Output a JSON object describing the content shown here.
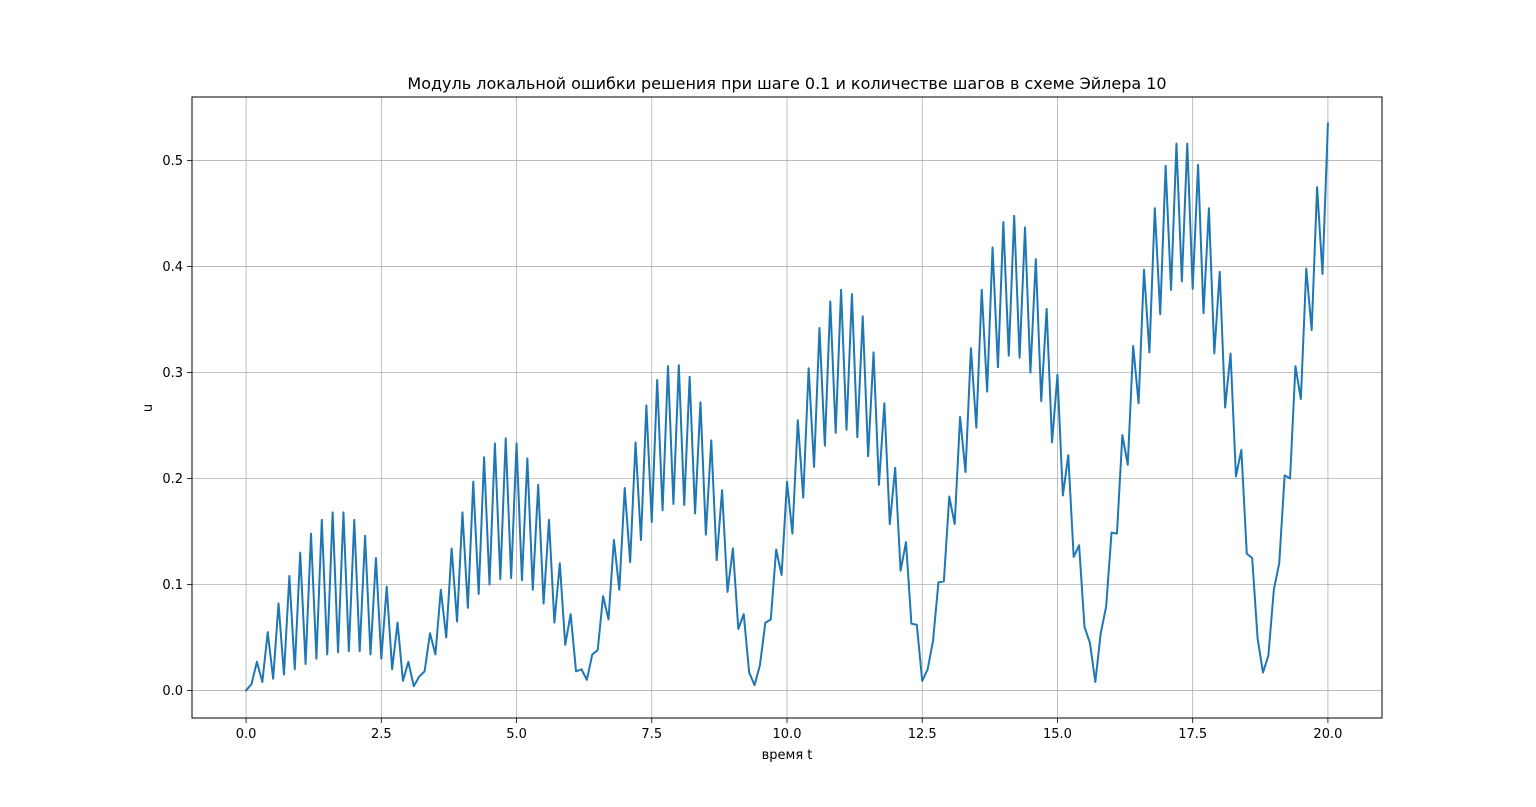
{
  "chart_data": {
    "type": "line",
    "title": "Модуль локальной ошибки решения при шаге 0.1 и количестве шагов в схеме Эйлера 10",
    "xlabel": "время t",
    "ylabel": "u",
    "xlim": [
      -1.0,
      21.0
    ],
    "ylim": [
      -0.026,
      0.56
    ],
    "grid": true,
    "x_ticks": [
      0.0,
      2.5,
      5.0,
      7.5,
      10.0,
      12.5,
      15.0,
      17.5,
      20.0
    ],
    "x_tick_labels": [
      "0.0",
      "2.5",
      "5.0",
      "7.5",
      "10.0",
      "12.5",
      "15.0",
      "17.5",
      "20.0"
    ],
    "y_ticks": [
      0.0,
      0.1,
      0.2,
      0.3,
      0.4,
      0.5
    ],
    "y_tick_labels": [
      "0.0",
      "0.1",
      "0.2",
      "0.3",
      "0.4",
      "0.5"
    ],
    "line_color": "#1f77b4",
    "series": [
      {
        "points": [
          [
            0.0,
            0.0
          ],
          [
            0.1,
            0.006
          ],
          [
            0.2,
            0.027
          ],
          [
            0.3,
            0.008
          ],
          [
            0.4,
            0.055
          ],
          [
            0.5,
            0.011
          ],
          [
            0.6,
            0.082
          ],
          [
            0.7,
            0.015
          ],
          [
            0.8,
            0.108
          ],
          [
            0.9,
            0.02
          ],
          [
            1.0,
            0.13
          ],
          [
            1.1,
            0.025
          ],
          [
            1.2,
            0.148
          ],
          [
            1.3,
            0.03
          ],
          [
            1.4,
            0.161
          ],
          [
            1.5,
            0.034
          ],
          [
            1.6,
            0.168
          ],
          [
            1.7,
            0.036
          ],
          [
            1.8,
            0.168
          ],
          [
            1.9,
            0.037
          ],
          [
            2.0,
            0.161
          ],
          [
            2.1,
            0.037
          ],
          [
            2.2,
            0.146
          ],
          [
            2.3,
            0.034
          ],
          [
            2.4,
            0.125
          ],
          [
            2.5,
            0.03
          ],
          [
            2.6,
            0.098
          ],
          [
            2.7,
            0.02
          ],
          [
            2.8,
            0.064
          ],
          [
            2.9,
            0.009
          ],
          [
            3.0,
            0.027
          ],
          [
            3.1,
            0.004
          ],
          [
            3.2,
            0.013
          ],
          [
            3.3,
            0.018
          ],
          [
            3.4,
            0.054
          ],
          [
            3.5,
            0.034
          ],
          [
            3.6,
            0.095
          ],
          [
            3.7,
            0.05
          ],
          [
            3.8,
            0.134
          ],
          [
            3.9,
            0.065
          ],
          [
            4.0,
            0.168
          ],
          [
            4.1,
            0.078
          ],
          [
            4.2,
            0.197
          ],
          [
            4.3,
            0.091
          ],
          [
            4.4,
            0.22
          ],
          [
            4.5,
            0.1
          ],
          [
            4.6,
            0.233
          ],
          [
            4.7,
            0.105
          ],
          [
            4.8,
            0.238
          ],
          [
            4.9,
            0.106
          ],
          [
            5.0,
            0.233
          ],
          [
            5.1,
            0.104
          ],
          [
            5.2,
            0.219
          ],
          [
            5.3,
            0.095
          ],
          [
            5.4,
            0.194
          ],
          [
            5.5,
            0.082
          ],
          [
            5.6,
            0.161
          ],
          [
            5.7,
            0.064
          ],
          [
            5.8,
            0.12
          ],
          [
            5.9,
            0.043
          ],
          [
            6.0,
            0.072
          ],
          [
            6.1,
            0.018
          ],
          [
            6.2,
            0.02
          ],
          [
            6.3,
            0.01
          ],
          [
            6.4,
            0.034
          ],
          [
            6.5,
            0.038
          ],
          [
            6.6,
            0.089
          ],
          [
            6.7,
            0.067
          ],
          [
            6.8,
            0.142
          ],
          [
            6.9,
            0.095
          ],
          [
            7.0,
            0.191
          ],
          [
            7.1,
            0.121
          ],
          [
            7.2,
            0.234
          ],
          [
            7.3,
            0.142
          ],
          [
            7.4,
            0.269
          ],
          [
            7.5,
            0.159
          ],
          [
            7.6,
            0.293
          ],
          [
            7.7,
            0.17
          ],
          [
            7.8,
            0.306
          ],
          [
            7.9,
            0.176
          ],
          [
            8.0,
            0.307
          ],
          [
            8.1,
            0.175
          ],
          [
            8.2,
            0.296
          ],
          [
            8.3,
            0.167
          ],
          [
            8.4,
            0.272
          ],
          [
            8.5,
            0.147
          ],
          [
            8.6,
            0.236
          ],
          [
            8.7,
            0.123
          ],
          [
            8.8,
            0.189
          ],
          [
            8.9,
            0.093
          ],
          [
            9.0,
            0.134
          ],
          [
            9.1,
            0.058
          ],
          [
            9.2,
            0.072
          ],
          [
            9.3,
            0.017
          ],
          [
            9.4,
            0.005
          ],
          [
            9.5,
            0.024
          ],
          [
            9.6,
            0.064
          ],
          [
            9.7,
            0.067
          ],
          [
            9.8,
            0.133
          ],
          [
            9.9,
            0.109
          ],
          [
            10.0,
            0.197
          ],
          [
            10.1,
            0.148
          ],
          [
            10.2,
            0.255
          ],
          [
            10.3,
            0.182
          ],
          [
            10.4,
            0.304
          ],
          [
            10.5,
            0.211
          ],
          [
            10.6,
            0.342
          ],
          [
            10.7,
            0.231
          ],
          [
            10.8,
            0.367
          ],
          [
            10.9,
            0.243
          ],
          [
            11.0,
            0.378
          ],
          [
            11.1,
            0.246
          ],
          [
            11.2,
            0.374
          ],
          [
            11.3,
            0.239
          ],
          [
            11.4,
            0.353
          ],
          [
            11.5,
            0.221
          ],
          [
            11.6,
            0.319
          ],
          [
            11.7,
            0.194
          ],
          [
            11.8,
            0.271
          ],
          [
            11.9,
            0.157
          ],
          [
            12.0,
            0.21
          ],
          [
            12.1,
            0.113
          ],
          [
            12.2,
            0.14
          ],
          [
            12.3,
            0.063
          ],
          [
            12.4,
            0.062
          ],
          [
            12.5,
            0.009
          ],
          [
            12.6,
            0.02
          ],
          [
            12.7,
            0.047
          ],
          [
            12.8,
            0.102
          ],
          [
            12.9,
            0.103
          ],
          [
            13.0,
            0.183
          ],
          [
            13.1,
            0.157
          ],
          [
            13.2,
            0.258
          ],
          [
            13.3,
            0.206
          ],
          [
            13.4,
            0.323
          ],
          [
            13.5,
            0.248
          ],
          [
            13.6,
            0.378
          ],
          [
            13.7,
            0.282
          ],
          [
            13.8,
            0.418
          ],
          [
            13.9,
            0.305
          ],
          [
            14.0,
            0.442
          ],
          [
            14.1,
            0.316
          ],
          [
            14.2,
            0.448
          ],
          [
            14.3,
            0.314
          ],
          [
            14.4,
            0.437
          ],
          [
            14.5,
            0.3
          ],
          [
            14.6,
            0.407
          ],
          [
            14.7,
            0.273
          ],
          [
            14.8,
            0.36
          ],
          [
            14.9,
            0.234
          ],
          [
            15.0,
            0.298
          ],
          [
            15.1,
            0.184
          ],
          [
            15.2,
            0.222
          ],
          [
            15.3,
            0.126
          ],
          [
            15.4,
            0.137
          ],
          [
            15.5,
            0.06
          ],
          [
            15.6,
            0.045
          ],
          [
            15.7,
            0.008
          ],
          [
            15.8,
            0.054
          ],
          [
            15.9,
            0.079
          ],
          [
            16.0,
            0.149
          ],
          [
            16.1,
            0.148
          ],
          [
            16.2,
            0.241
          ],
          [
            16.3,
            0.213
          ],
          [
            16.4,
            0.325
          ],
          [
            16.5,
            0.271
          ],
          [
            16.6,
            0.397
          ],
          [
            16.7,
            0.319
          ],
          [
            16.8,
            0.455
          ],
          [
            16.9,
            0.355
          ],
          [
            17.0,
            0.495
          ],
          [
            17.1,
            0.378
          ],
          [
            17.2,
            0.516
          ],
          [
            17.3,
            0.386
          ],
          [
            17.4,
            0.516
          ],
          [
            17.5,
            0.379
          ],
          [
            17.6,
            0.496
          ],
          [
            17.7,
            0.356
          ],
          [
            17.8,
            0.455
          ],
          [
            17.9,
            0.318
          ],
          [
            18.0,
            0.395
          ],
          [
            18.1,
            0.267
          ],
          [
            18.2,
            0.318
          ],
          [
            18.3,
            0.202
          ],
          [
            18.4,
            0.227
          ],
          [
            18.5,
            0.129
          ],
          [
            18.6,
            0.125
          ],
          [
            18.7,
            0.049
          ],
          [
            18.8,
            0.017
          ],
          [
            18.9,
            0.033
          ],
          [
            19.0,
            0.095
          ],
          [
            19.1,
            0.12
          ],
          [
            19.2,
            0.203
          ],
          [
            19.3,
            0.2
          ],
          [
            19.4,
            0.306
          ],
          [
            19.5,
            0.275
          ],
          [
            19.6,
            0.398
          ],
          [
            19.7,
            0.34
          ],
          [
            19.8,
            0.475
          ],
          [
            19.9,
            0.393
          ],
          [
            20.0,
            0.535
          ]
        ]
      }
    ]
  }
}
